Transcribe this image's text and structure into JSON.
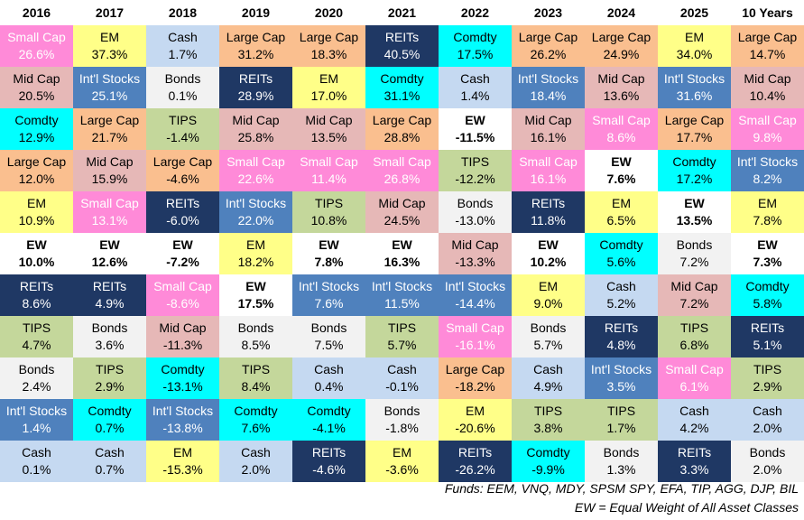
{
  "table": {
    "headers": [
      "2016",
      "2017",
      "2018",
      "2019",
      "2020",
      "2021",
      "2022",
      "2023",
      "2024",
      "2025",
      "10 Years"
    ],
    "columns": [
      [
        {
          "name": "Small Cap",
          "value": "26.6%"
        },
        {
          "name": "Mid Cap",
          "value": "20.5%"
        },
        {
          "name": "Comdty",
          "value": "12.9%"
        },
        {
          "name": "Large Cap",
          "value": "12.0%"
        },
        {
          "name": "EM",
          "value": "10.9%"
        },
        {
          "name": "EW",
          "value": "10.0%"
        },
        {
          "name": "REITs",
          "value": "8.6%"
        },
        {
          "name": "TIPS",
          "value": "4.7%"
        },
        {
          "name": "Bonds",
          "value": "2.4%"
        },
        {
          "name": "Int'l Stocks",
          "value": "1.4%"
        },
        {
          "name": "Cash",
          "value": "0.1%"
        }
      ],
      [
        {
          "name": "EM",
          "value": "37.3%"
        },
        {
          "name": "Int'l Stocks",
          "value": "25.1%"
        },
        {
          "name": "Large Cap",
          "value": "21.7%"
        },
        {
          "name": "Mid Cap",
          "value": "15.9%"
        },
        {
          "name": "Small Cap",
          "value": "13.1%"
        },
        {
          "name": "EW",
          "value": "12.6%"
        },
        {
          "name": "REITs",
          "value": "4.9%"
        },
        {
          "name": "Bonds",
          "value": "3.6%"
        },
        {
          "name": "TIPS",
          "value": "2.9%"
        },
        {
          "name": "Comdty",
          "value": "0.7%"
        },
        {
          "name": "Cash",
          "value": "0.7%"
        }
      ],
      [
        {
          "name": "Cash",
          "value": "1.7%"
        },
        {
          "name": "Bonds",
          "value": "0.1%"
        },
        {
          "name": "TIPS",
          "value": "-1.4%"
        },
        {
          "name": "Large Cap",
          "value": "-4.6%"
        },
        {
          "name": "REITs",
          "value": "-6.0%"
        },
        {
          "name": "EW",
          "value": "-7.2%"
        },
        {
          "name": "Small Cap",
          "value": "-8.6%"
        },
        {
          "name": "Mid Cap",
          "value": "-11.3%"
        },
        {
          "name": "Comdty",
          "value": "-13.1%"
        },
        {
          "name": "Int'l Stocks",
          "value": "-13.8%"
        },
        {
          "name": "EM",
          "value": "-15.3%"
        }
      ],
      [
        {
          "name": "Large Cap",
          "value": "31.2%"
        },
        {
          "name": "REITs",
          "value": "28.9%"
        },
        {
          "name": "Mid Cap",
          "value": "25.8%"
        },
        {
          "name": "Small Cap",
          "value": "22.6%"
        },
        {
          "name": "Int'l Stocks",
          "value": "22.0%"
        },
        {
          "name": "EM",
          "value": "18.2%"
        },
        {
          "name": "EW",
          "value": "17.5%"
        },
        {
          "name": "Bonds",
          "value": "8.5%"
        },
        {
          "name": "TIPS",
          "value": "8.4%"
        },
        {
          "name": "Comdty",
          "value": "7.6%"
        },
        {
          "name": "Cash",
          "value": "2.0%"
        }
      ],
      [
        {
          "name": "Large Cap",
          "value": "18.3%"
        },
        {
          "name": "EM",
          "value": "17.0%"
        },
        {
          "name": "Mid Cap",
          "value": "13.5%"
        },
        {
          "name": "Small Cap",
          "value": "11.4%"
        },
        {
          "name": "TIPS",
          "value": "10.8%"
        },
        {
          "name": "EW",
          "value": "7.8%"
        },
        {
          "name": "Int'l Stocks",
          "value": "7.6%"
        },
        {
          "name": "Bonds",
          "value": "7.5%"
        },
        {
          "name": "Cash",
          "value": "0.4%"
        },
        {
          "name": "Comdty",
          "value": "-4.1%"
        },
        {
          "name": "REITs",
          "value": "-4.6%"
        }
      ],
      [
        {
          "name": "REITs",
          "value": "40.5%"
        },
        {
          "name": "Comdty",
          "value": "31.1%"
        },
        {
          "name": "Large Cap",
          "value": "28.8%"
        },
        {
          "name": "Small Cap",
          "value": "26.8%"
        },
        {
          "name": "Mid Cap",
          "value": "24.5%"
        },
        {
          "name": "EW",
          "value": "16.3%"
        },
        {
          "name": "Int'l Stocks",
          "value": "11.5%"
        },
        {
          "name": "TIPS",
          "value": "5.7%"
        },
        {
          "name": "Cash",
          "value": "-0.1%"
        },
        {
          "name": "Bonds",
          "value": "-1.8%"
        },
        {
          "name": "EM",
          "value": "-3.6%"
        }
      ],
      [
        {
          "name": "Comdty",
          "value": "17.5%"
        },
        {
          "name": "Cash",
          "value": "1.4%"
        },
        {
          "name": "EW",
          "value": "-11.5%"
        },
        {
          "name": "TIPS",
          "value": "-12.2%"
        },
        {
          "name": "Bonds",
          "value": "-13.0%"
        },
        {
          "name": "Mid Cap",
          "value": "-13.3%"
        },
        {
          "name": "Int'l Stocks",
          "value": "-14.4%"
        },
        {
          "name": "Small Cap",
          "value": "-16.1%"
        },
        {
          "name": "Large Cap",
          "value": "-18.2%"
        },
        {
          "name": "EM",
          "value": "-20.6%"
        },
        {
          "name": "REITs",
          "value": "-26.2%"
        }
      ],
      [
        {
          "name": "Large Cap",
          "value": "26.2%"
        },
        {
          "name": "Int'l Stocks",
          "value": "18.4%"
        },
        {
          "name": "Mid Cap",
          "value": "16.1%"
        },
        {
          "name": "Small Cap",
          "value": "16.1%"
        },
        {
          "name": "REITs",
          "value": "11.8%"
        },
        {
          "name": "EW",
          "value": "10.2%"
        },
        {
          "name": "EM",
          "value": "9.0%"
        },
        {
          "name": "Bonds",
          "value": "5.7%"
        },
        {
          "name": "Cash",
          "value": "4.9%"
        },
        {
          "name": "TIPS",
          "value": "3.8%"
        },
        {
          "name": "Comdty",
          "value": "-9.9%"
        }
      ],
      [
        {
          "name": "Large Cap",
          "value": "24.9%"
        },
        {
          "name": "Mid Cap",
          "value": "13.6%"
        },
        {
          "name": "Small Cap",
          "value": "8.6%"
        },
        {
          "name": "EW",
          "value": "7.6%"
        },
        {
          "name": "EM",
          "value": "6.5%"
        },
        {
          "name": "Comdty",
          "value": "5.6%"
        },
        {
          "name": "Cash",
          "value": "5.2%"
        },
        {
          "name": "REITs",
          "value": "4.8%"
        },
        {
          "name": "Int'l Stocks",
          "value": "3.5%"
        },
        {
          "name": "TIPS",
          "value": "1.7%"
        },
        {
          "name": "Bonds",
          "value": "1.3%"
        }
      ],
      [
        {
          "name": "EM",
          "value": "34.0%"
        },
        {
          "name": "Int'l Stocks",
          "value": "31.6%"
        },
        {
          "name": "Large Cap",
          "value": "17.7%"
        },
        {
          "name": "Comdty",
          "value": "17.2%"
        },
        {
          "name": "EW",
          "value": "13.5%"
        },
        {
          "name": "Bonds",
          "value": "7.2%"
        },
        {
          "name": "Mid Cap",
          "value": "7.2%"
        },
        {
          "name": "TIPS",
          "value": "6.8%"
        },
        {
          "name": "Small Cap",
          "value": "6.1%"
        },
        {
          "name": "Cash",
          "value": "4.2%"
        },
        {
          "name": "REITs",
          "value": "3.3%"
        }
      ],
      [
        {
          "name": "Large Cap",
          "value": "14.7%"
        },
        {
          "name": "Mid Cap",
          "value": "10.4%"
        },
        {
          "name": "Small Cap",
          "value": "9.8%"
        },
        {
          "name": "Int'l Stocks",
          "value": "8.2%"
        },
        {
          "name": "EM",
          "value": "7.8%"
        },
        {
          "name": "EW",
          "value": "7.3%"
        },
        {
          "name": "Comdty",
          "value": "5.8%"
        },
        {
          "name": "REITs",
          "value": "5.1%"
        },
        {
          "name": "TIPS",
          "value": "2.9%"
        },
        {
          "name": "Cash",
          "value": "2.0%"
        },
        {
          "name": "Bonds",
          "value": "2.0%"
        }
      ]
    ],
    "styles": {
      "Small Cap": {
        "bg": "#ff8ad8",
        "fg": "#ffffff"
      },
      "EM": {
        "bg": "#ffff88",
        "fg": "#000000"
      },
      "Cash": {
        "bg": "#c5d9f1",
        "fg": "#000000"
      },
      "Large Cap": {
        "bg": "#fabf8f",
        "fg": "#000000"
      },
      "REITs": {
        "bg": "#1f3864",
        "fg": "#ffffff"
      },
      "Comdty": {
        "bg": "#00ffff",
        "fg": "#000000"
      },
      "Mid Cap": {
        "bg": "#e6b8b7",
        "fg": "#000000"
      },
      "Int'l Stocks": {
        "bg": "#4f81bd",
        "fg": "#ffffff"
      },
      "Bonds": {
        "bg": "#f2f2f2",
        "fg": "#000000"
      },
      "TIPS": {
        "bg": "#c4d79b",
        "fg": "#000000"
      },
      "EW": {
        "bg": "#ffffff",
        "fg": "#000000",
        "bold": true
      }
    }
  },
  "footnotes": [
    "Funds: EEM, VNQ, MDY, SPSM SPY, EFA, TIP, AGG, DJP, BIL",
    "EW = Equal Weight of All Asset Classes"
  ]
}
